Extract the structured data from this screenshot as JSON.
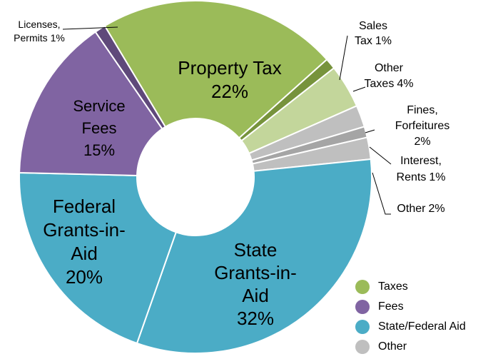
{
  "chart_data": {
    "type": "donut",
    "categories": [
      [
        "Property Tax"
      ],
      [
        "Sales",
        "Tax"
      ],
      [
        "Other",
        "Taxes"
      ],
      [
        "Fines,",
        "Forfeitures"
      ],
      [
        "Interest,",
        "Rents"
      ],
      [
        "Other"
      ],
      [
        "State",
        "Grants-in-",
        "Aid"
      ],
      [
        "Federal",
        "Grants-in-",
        "Aid"
      ],
      [
        "Service",
        "Fees"
      ],
      [
        "Licenses,",
        "Permits"
      ]
    ],
    "values": [
      22,
      1,
      4,
      2,
      1,
      2,
      32,
      20,
      15,
      1
    ],
    "value_labels": [
      "22%",
      "1%",
      "4%",
      "2%",
      "1%",
      "2%",
      "32%",
      "20%",
      "15%",
      "1%"
    ],
    "colors": [
      "#9bbb59",
      "#77933c",
      "#c3d69b",
      "#bfbfbf",
      "#a5a5a5",
      "#bfbfbf",
      "#4bacc6",
      "#4bacc6",
      "#8064a2",
      "#5f497a"
    ],
    "legend": [
      {
        "name": "Taxes",
        "color": "#9bbb59"
      },
      {
        "name": "Fees",
        "color": "#8064a2"
      },
      {
        "name": "State/Federal Aid",
        "color": "#4bacc6"
      },
      {
        "name": "Other",
        "color": "#bfbfbf"
      }
    ]
  }
}
